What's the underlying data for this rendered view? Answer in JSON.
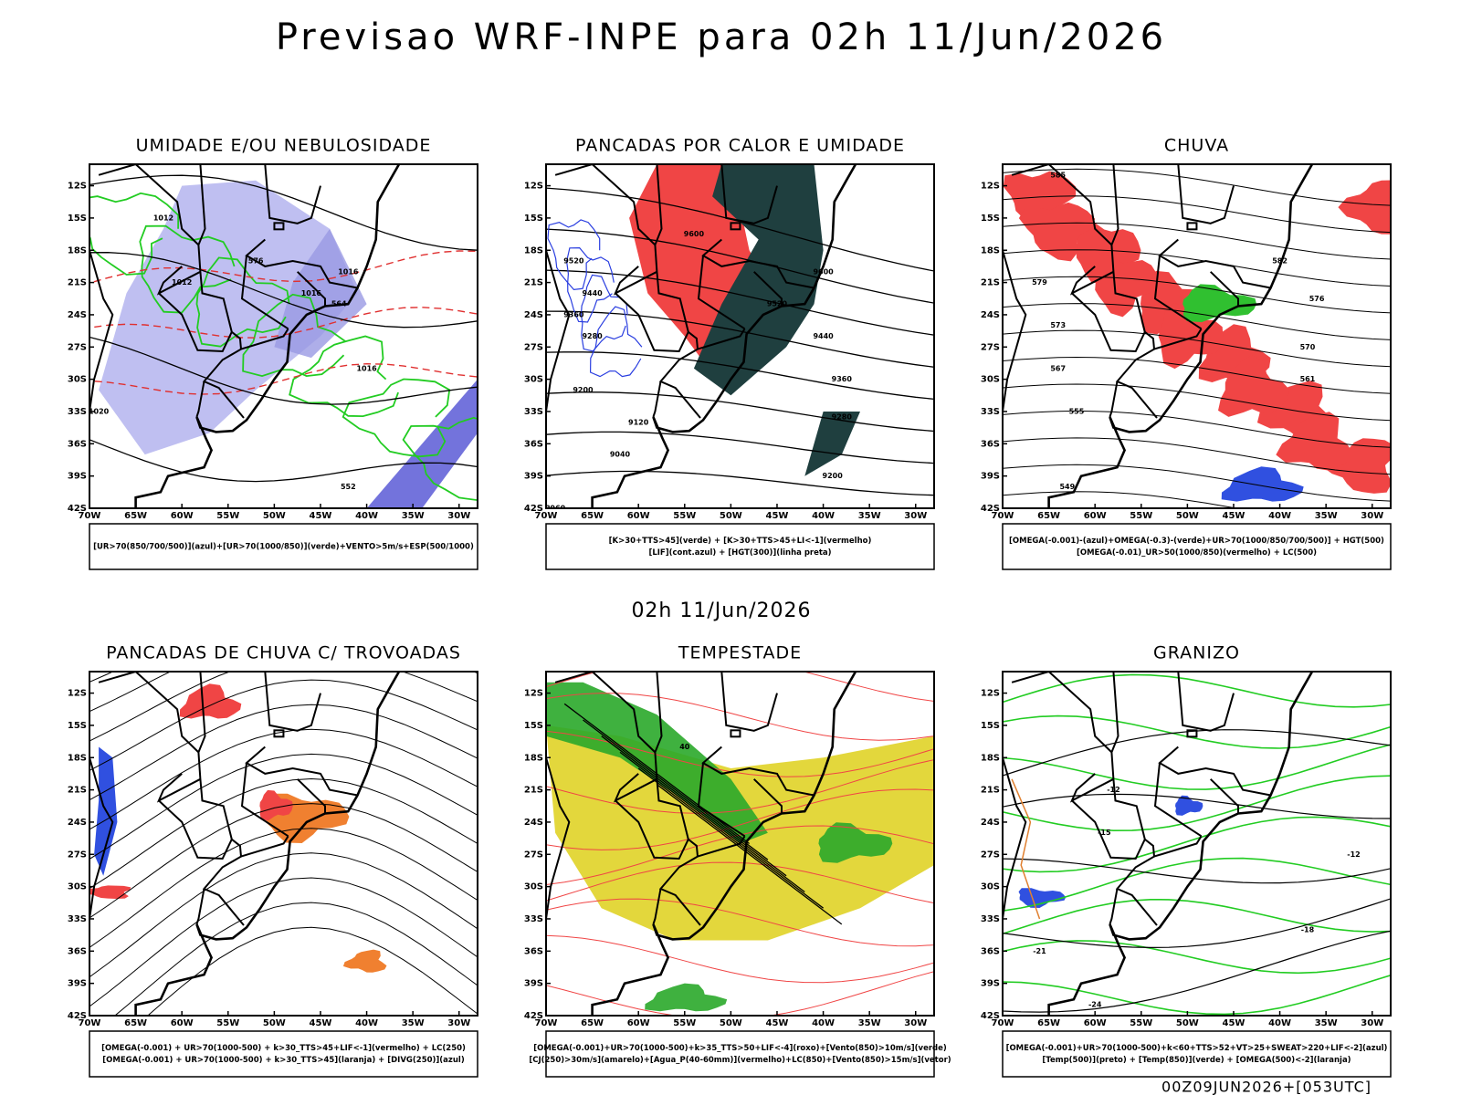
{
  "header": {
    "title": "Previsao WRF-INPE  para 02h 11/Jun/2026",
    "subtitle": "02h 11/Jun/2026"
  },
  "axes": {
    "lat_labels": [
      "12S",
      "15S",
      "18S",
      "21S",
      "24S",
      "27S",
      "30S",
      "33S",
      "36S",
      "39S",
      "42S"
    ],
    "lon_labels": [
      "70W",
      "65W",
      "60W",
      "55W",
      "50W",
      "45W",
      "40W",
      "35W",
      "30W"
    ]
  },
  "panels": [
    {
      "title": "UMIDADE E/OU NEBULOSIDADE",
      "legend": [
        "[UR>70(850/700/500)](azul)+[UR>70(1000/850)](verde)+VENTO>5m/s+ESP(500/1000)"
      ],
      "contour_labels": [
        "1012",
        "1012",
        "1016",
        "1016",
        "1016",
        "1020",
        "576",
        "564",
        "552"
      ]
    },
    {
      "title": "PANCADAS POR CALOR E UMIDADE",
      "legend": [
        "[K>30+TTS>45](verde) + [K>30+TTS>45+LI<-1](vermelho)",
        "[LIF](cont.azul) + [HGT(300)](linha preta)"
      ],
      "contour_labels": [
        "9600",
        "9600",
        "9520",
        "9520",
        "9440",
        "9440",
        "9360",
        "9360",
        "9280",
        "9280",
        "9200",
        "9200",
        "9120",
        "9040",
        "8960"
      ]
    },
    {
      "title": "CHUVA",
      "legend": [
        "[OMEGA(-0.001)-(azul)+OMEGA(-0.3)-(verde)+UR>70(1000/850/700/500)] + HGT(500)",
        "[OMEGA(-0.01)_UR>50(1000/850)(vermelho) + LC(500)"
      ],
      "contour_labels": [
        "585",
        "582",
        "579",
        "576",
        "573",
        "570",
        "567",
        "561",
        "555",
        "549"
      ]
    },
    {
      "title": "PANCADAS DE CHUVA C/ TROVOADAS",
      "legend": [
        "[OMEGA(-0.001) + UR>70(1000-500) + k>30_TTS>45+LIF<-1](vermelho) + LC(250)",
        "[OMEGA(-0.001) + UR>70(1000-500) + k>30_TTS>45](laranja) + [DIVG(250)](azul)"
      ],
      "contour_labels": []
    },
    {
      "title": "TEMPESTADE",
      "legend": [
        "[OMEGA(-0.001)+UR>70(1000-500)+k>35_TTS>50+LIF<-4](roxo)+[Vento(850)>10m/s](verde)",
        "[CJ(250)>30m/s](amarelo)+[Agua_P(40-60mm)](vermelho)+LC(850)+[Vento(850)>15m/s](vetor)"
      ],
      "contour_labels": [
        "40"
      ]
    },
    {
      "title": "GRANIZO",
      "legend": [
        "[OMEGA(-0.001)+UR>70(1000-500)+k<60+TTS>52+VT>25+SWEAT>220+LIF<-2](azul)",
        "[Temp(500)](preto) + [Temp(850)](verde) + [OMEGA(500)<-2](laranja)"
      ],
      "contour_labels": [
        "-12",
        "-12",
        "-15",
        "-18",
        "-21",
        "-24"
      ]
    }
  ],
  "footer": "00Z09JUN2026+[053UTC]"
}
